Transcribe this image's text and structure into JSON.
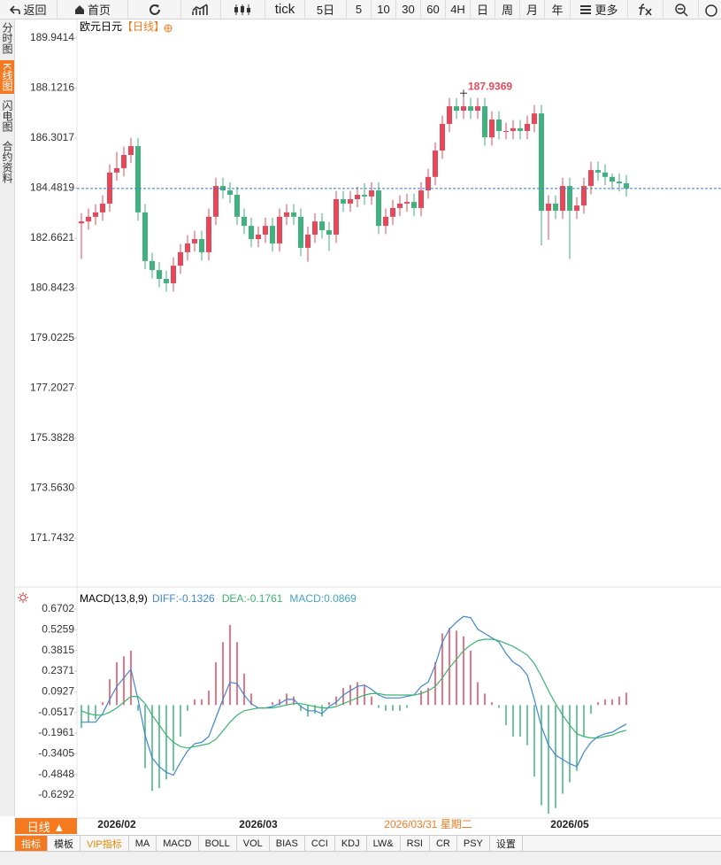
{
  "toolbar": [
    "返回",
    "首页",
    "tick",
    "5日",
    "5",
    "10",
    "30",
    "60",
    "4H",
    "日",
    "周",
    "月",
    "年",
    "更多"
  ],
  "side_tabs": [
    "分时图",
    "K线图",
    "闪电图",
    "合约资料"
  ],
  "active_side_tab": 1,
  "period_button": "日线 ▲",
  "indicator_tabs": [
    "指标",
    "模板",
    "VIP指标",
    "MA",
    "MACD",
    "BOLL",
    "VOL",
    "BIAS",
    "CCI",
    "KDJ",
    "LW&",
    "RSI",
    "CR",
    "PSY",
    "设置"
  ],
  "active_indicator_tab": 0,
  "vip_tab": 2,
  "chart_data": [
    {
      "type": "candlestick",
      "title": "欧元日元",
      "period": "【日线】",
      "up_color": "#e8475a",
      "down_color": "#3fb27f",
      "last_price_line": true,
      "max_label_index": 54,
      "cursor_index": 49,
      "categories": [
        null,
        null,
        null,
        null,
        null,
        "2026/02",
        null,
        null,
        null,
        null,
        null,
        null,
        null,
        null,
        null,
        null,
        null,
        null,
        null,
        null,
        null,
        null,
        null,
        null,
        null,
        "2026/03",
        null,
        null,
        null,
        null,
        null,
        null,
        null,
        null,
        null,
        null,
        null,
        null,
        null,
        null,
        null,
        null,
        null,
        null,
        null,
        null,
        null,
        null,
        null,
        "2026/03/31 星期二",
        null,
        null,
        null,
        null,
        null,
        null,
        null,
        null,
        null,
        null,
        null,
        null,
        null,
        null,
        null,
        null,
        null,
        null,
        null,
        "2026/05",
        null,
        null,
        null,
        null,
        null,
        null,
        null,
        null
      ],
      "open": [
        183.2,
        183.27,
        183.44,
        183.6,
        183.92,
        185.05,
        185.21,
        185.69,
        186.01,
        183.6,
        181.83,
        181.5,
        181.18,
        181.02,
        181.66,
        182.15,
        182.47,
        182.63,
        182.15,
        183.44,
        184.56,
        184.4,
        184.24,
        183.44,
        183.11,
        182.63,
        182.79,
        183.11,
        182.47,
        183.44,
        183.6,
        183.44,
        182.31,
        182.79,
        183.27,
        182.95,
        182.79,
        184.08,
        183.92,
        184.08,
        184.24,
        184.18,
        184.4,
        183.11,
        183.44,
        183.76,
        183.92,
        183.98,
        183.76,
        184.4,
        184.89,
        185.85,
        186.82,
        187.46,
        187.3,
        187.46,
        187.3,
        187.46,
        186.33,
        186.98,
        186.56,
        186.56,
        186.66,
        186.56,
        186.82,
        187.2,
        183.66,
        183.92,
        183.66,
        184.56,
        183.66,
        183.85,
        184.56,
        185.14,
        185.05,
        184.89,
        184.72,
        184.66
      ],
      "high": [
        183.57,
        183.74,
        183.9,
        184.22,
        185.35,
        185.8,
        185.99,
        186.31,
        186.31,
        183.9,
        182.13,
        181.8,
        181.48,
        181.96,
        182.45,
        182.77,
        182.93,
        182.93,
        183.74,
        184.86,
        184.86,
        184.7,
        184.54,
        183.74,
        183.41,
        183.09,
        183.41,
        183.41,
        183.74,
        183.9,
        183.9,
        183.74,
        183.09,
        183.57,
        183.57,
        183.25,
        184.38,
        184.38,
        184.38,
        184.54,
        184.66,
        184.7,
        184.7,
        183.74,
        184.06,
        184.22,
        184.28,
        184.28,
        184.7,
        185.19,
        186.15,
        187.12,
        187.76,
        187.76,
        187.9369,
        187.76,
        187.76,
        187.76,
        187.28,
        187.28,
        186.86,
        186.96,
        186.96,
        187.12,
        187.5,
        187.5,
        184.22,
        184.22,
        184.86,
        184.86,
        184.15,
        184.86,
        185.44,
        185.44,
        185.35,
        185.02,
        185.02,
        184.96
      ],
      "low": [
        181.9,
        182.97,
        183.14,
        183.3,
        183.62,
        184.75,
        184.91,
        185.39,
        183.3,
        181.53,
        181.2,
        180.88,
        180.72,
        180.72,
        181.36,
        181.85,
        182.17,
        181.85,
        181.85,
        183.14,
        184.1,
        183.94,
        183.14,
        182.81,
        182.33,
        182.33,
        182.49,
        182.17,
        182.17,
        183.14,
        183.14,
        182.01,
        181.8,
        182.49,
        182.65,
        182.2,
        182.49,
        183.62,
        183.62,
        183.78,
        183.88,
        183.88,
        182.81,
        182.81,
        183.14,
        183.46,
        183.62,
        183.46,
        183.46,
        184.1,
        184.59,
        185.55,
        186.52,
        187.0,
        187.0,
        187.0,
        187.0,
        186.03,
        186.03,
        186.26,
        186.26,
        186.26,
        186.26,
        186.26,
        186.52,
        182.4,
        182.6,
        183.36,
        183.36,
        181.9,
        183.36,
        183.55,
        184.26,
        184.75,
        184.59,
        184.42,
        184.36,
        184.17
      ],
      "close": [
        183.27,
        183.44,
        183.6,
        183.92,
        185.05,
        185.21,
        185.69,
        186.01,
        183.6,
        181.83,
        181.5,
        181.18,
        181.02,
        181.66,
        182.15,
        182.47,
        182.63,
        182.15,
        183.44,
        184.56,
        184.4,
        184.24,
        183.44,
        183.11,
        182.63,
        182.79,
        183.11,
        182.47,
        183.44,
        183.6,
        183.44,
        182.31,
        182.79,
        183.27,
        182.95,
        182.79,
        184.08,
        183.92,
        184.08,
        184.24,
        184.18,
        184.4,
        183.11,
        183.44,
        183.76,
        183.92,
        183.98,
        183.76,
        184.4,
        184.89,
        185.85,
        186.82,
        187.46,
        187.3,
        187.46,
        187.3,
        187.46,
        186.33,
        186.98,
        186.56,
        186.56,
        186.66,
        186.56,
        186.82,
        187.2,
        183.66,
        183.92,
        183.66,
        184.56,
        183.66,
        183.85,
        184.56,
        185.14,
        185.05,
        184.89,
        184.72,
        184.66,
        184.47
      ],
      "ylim": [
        170.068,
        190.618
      ],
      "yticks": [
        189.9414,
        188.1216,
        186.3017,
        184.4819,
        182.6621,
        180.8423,
        179.0225,
        177.2027,
        175.3828,
        {
          "value": 173.563,
          "label": "173.5630"
        },
        171.7432
      ]
    },
    {
      "type": "macd",
      "title": "MACD(13,8,9)",
      "readout": [
        "DIFF:-0.1326",
        "DEA:-0.1761",
        "MACD:0.0869"
      ],
      "ylim": [
        -0.796,
        0.794
      ],
      "yticks": [
        0.6702,
        0.5259,
        0.3815,
        0.2371,
        0.0927,
        -0.0517,
        -0.1961,
        -0.3405,
        -0.4848,
        -0.6292
      ],
      "series": [
        {
          "name": "DIFF",
          "color": "#3f86d6",
          "kind": "line",
          "values": [
            -0.12,
            -0.12,
            -0.12,
            -0.06,
            0.04,
            0.13,
            0.19,
            0.25,
            0.04,
            -0.21,
            -0.37,
            -0.43,
            -0.47,
            -0.49,
            -0.4,
            -0.32,
            -0.27,
            -0.26,
            -0.22,
            -0.09,
            0.04,
            0.16,
            0.15,
            0.07,
            0.01,
            -0.02,
            -0.02,
            -0.01,
            0.01,
            0.04,
            0.04,
            -0.01,
            -0.04,
            -0.04,
            -0.06,
            -0.01,
            0.02,
            0.07,
            0.1,
            0.13,
            0.14,
            0.11,
            0.07,
            0.05,
            0.05,
            0.05,
            0.06,
            0.07,
            0.13,
            0.16,
            0.28,
            0.44,
            0.53,
            0.58,
            0.62,
            0.61,
            0.53,
            0.5,
            0.47,
            0.44,
            0.36,
            0.3,
            0.27,
            0.21,
            0.04,
            -0.15,
            -0.28,
            -0.35,
            -0.38,
            -0.41,
            -0.43,
            -0.33,
            -0.26,
            -0.22,
            -0.2,
            -0.19,
            -0.16,
            -0.1326
          ]
        },
        {
          "name": "DEA",
          "color": "#3cb371",
          "kind": "line",
          "values": [
            -0.04,
            -0.06,
            -0.07,
            -0.07,
            -0.05,
            -0.02,
            0.02,
            0.06,
            0.06,
            0.01,
            -0.07,
            -0.14,
            -0.21,
            -0.26,
            -0.29,
            -0.3,
            -0.29,
            -0.28,
            -0.27,
            -0.24,
            -0.18,
            -0.12,
            -0.07,
            -0.04,
            -0.03,
            -0.02,
            -0.02,
            -0.02,
            -0.01,
            0.0,
            0.01,
            0.01,
            0.0,
            -0.01,
            -0.02,
            -0.02,
            -0.01,
            0.01,
            0.03,
            0.05,
            0.07,
            0.08,
            0.08,
            0.07,
            0.07,
            0.07,
            0.07,
            0.07,
            0.08,
            0.1,
            0.13,
            0.19,
            0.26,
            0.32,
            0.38,
            0.42,
            0.45,
            0.46,
            0.46,
            0.45,
            0.43,
            0.41,
            0.38,
            0.35,
            0.29,
            0.2,
            0.1,
            0.01,
            -0.07,
            -0.14,
            -0.2,
            -0.22,
            -0.23,
            -0.23,
            -0.22,
            -0.21,
            -0.19,
            -0.1761
          ]
        },
        {
          "name": "MACD",
          "color": "#45a7c4",
          "kind": "bars",
          "up_color": "#e8475a",
          "down_color": "#3fb27f",
          "values": [
            -0.16,
            -0.12,
            -0.1,
            0.02,
            0.18,
            0.3,
            0.34,
            0.38,
            -0.04,
            -0.44,
            -0.6,
            -0.58,
            -0.52,
            -0.46,
            -0.22,
            -0.04,
            0.04,
            0.04,
            0.1,
            0.3,
            0.44,
            0.56,
            0.44,
            0.22,
            0.08,
            0.0,
            0.0,
            0.02,
            0.04,
            0.08,
            0.06,
            -0.04,
            -0.08,
            -0.06,
            -0.08,
            0.02,
            0.06,
            0.12,
            0.14,
            0.16,
            0.14,
            0.06,
            -0.02,
            -0.04,
            -0.04,
            -0.04,
            -0.02,
            0.0,
            0.1,
            0.12,
            0.3,
            0.5,
            0.54,
            0.52,
            0.48,
            0.38,
            0.16,
            0.08,
            0.02,
            -0.02,
            -0.14,
            -0.22,
            -0.22,
            -0.28,
            -0.5,
            -0.7,
            -0.76,
            -0.72,
            -0.62,
            -0.54,
            -0.46,
            -0.22,
            -0.06,
            0.02,
            0.04,
            0.04,
            0.06,
            0.0869
          ]
        }
      ]
    }
  ]
}
